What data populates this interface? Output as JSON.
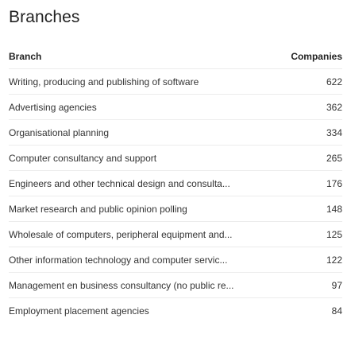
{
  "title": "Branches",
  "table": {
    "columns": {
      "branch": "Branch",
      "companies": "Companies"
    },
    "rows": [
      {
        "branch": "Writing, producing and publishing of software",
        "companies": "622"
      },
      {
        "branch": "Advertising agencies",
        "companies": "362"
      },
      {
        "branch": "Organisational planning",
        "companies": "334"
      },
      {
        "branch": "Computer consultancy and support",
        "companies": "265"
      },
      {
        "branch": "Engineers and other technical design and consulta...",
        "companies": "176"
      },
      {
        "branch": "Market research and public opinion polling",
        "companies": "148"
      },
      {
        "branch": "Wholesale of computers, peripheral equipment and...",
        "companies": "125"
      },
      {
        "branch": "Other information technology and computer servic...",
        "companies": "122"
      },
      {
        "branch": "Management en business consultancy (no public re...",
        "companies": "97"
      },
      {
        "branch": "Employment placement agencies",
        "companies": "84"
      }
    ]
  }
}
